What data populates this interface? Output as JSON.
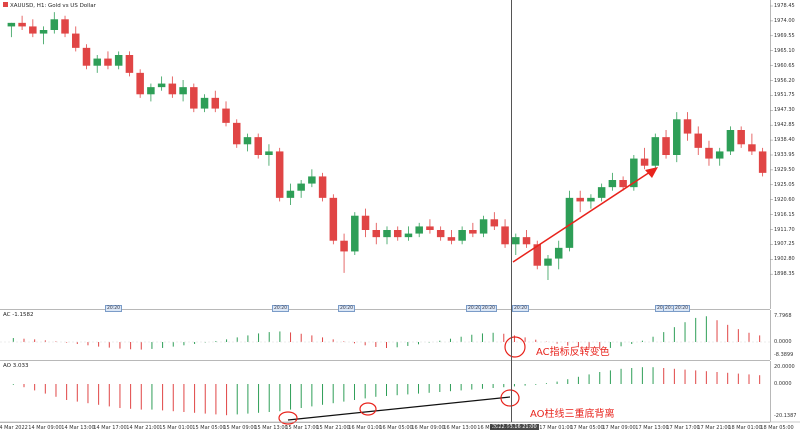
{
  "main_pane": {
    "title": "XAUUSD, H1:  Gold vs US Dollar",
    "price_labels": [
      "1978.45",
      "1974.00",
      "1969.55",
      "1965.10",
      "1960.65",
      "1956.20",
      "1951.75",
      "1947.30",
      "1942.85",
      "1938.40",
      "1933.95",
      "1929.50",
      "1925.05",
      "1920.60",
      "1916.15",
      "1911.70",
      "1907.25",
      "1902.80",
      "1898.35"
    ],
    "markers": [
      "20:20",
      "20:20",
      "20:20",
      "20:20",
      "20:20",
      "20:20",
      "20:20",
      "20:20",
      "20:20"
    ],
    "note_bottom_markers": [
      "28:20",
      "17:29",
      "28:20",
      "16:20",
      "20:20",
      "17:29",
      "21:20"
    ]
  },
  "ac_pane": {
    "title": "AC -1.1582",
    "scale_labels": [
      "7.7968",
      "0.0000",
      "-8.3899"
    ],
    "annotation": "AC指标反转变色"
  },
  "ao_pane": {
    "title": "AO 3.033",
    "scale_labels": [
      "20.0000",
      "0.0000",
      "-20.1387"
    ],
    "annotation": "AO柱线三重底背离"
  },
  "time_axis": {
    "labels": [
      "14 Mar 2022",
      "14 Mar 09:00",
      "14 Mar 13:00",
      "14 Mar 17:00",
      "14 Mar 21:00",
      "15 Mar 01:00",
      "15 Mar 05:00",
      "15 Mar 09:00",
      "15 Mar 13:00",
      "15 Mar 17:00",
      "15 Mar 21:00",
      "16 Mar 01:00",
      "16 Mar 05:00",
      "16 Mar 09:00",
      "16 Mar 13:00",
      "16 Mar 17:00",
      "17 Mar 01:00",
      "17 Mar 05:00",
      "17 Mar 09:00",
      "17 Mar 13:00",
      "17 Mar 17:00",
      "17 Mar 21:00",
      "18 Mar 01:00",
      "18 Mar 05:00"
    ],
    "crosshair_label": "2022.03.16 21:00"
  },
  "colors": {
    "bull": "#2e9e57",
    "bear": "#e04545",
    "accent": "#e8231c"
  },
  "chart_data": {
    "type": "candlestick",
    "title": "XAUUSD, H1:  Gold vs US Dollar",
    "ylim": [
      1896,
      1980
    ],
    "candles": [
      [
        1974,
        1975,
        1971,
        1975
      ],
      [
        1975,
        1977,
        1973,
        1974
      ],
      [
        1974,
        1976,
        1971,
        1972
      ],
      [
        1972,
        1974,
        1969,
        1973
      ],
      [
        1973,
        1978,
        1972,
        1976
      ],
      [
        1976,
        1977,
        1971,
        1972
      ],
      [
        1972,
        1974,
        1967,
        1968
      ],
      [
        1968,
        1969,
        1962,
        1963
      ],
      [
        1963,
        1966,
        1961,
        1965
      ],
      [
        1965,
        1967,
        1962,
        1963
      ],
      [
        1963,
        1967,
        1962,
        1966
      ],
      [
        1966,
        1967,
        1960,
        1961
      ],
      [
        1961,
        1962,
        1954,
        1955
      ],
      [
        1955,
        1958,
        1953,
        1957
      ],
      [
        1957,
        1960,
        1956,
        1958
      ],
      [
        1958,
        1960,
        1954,
        1955
      ],
      [
        1955,
        1959,
        1953,
        1957
      ],
      [
        1957,
        1958,
        1950,
        1951
      ],
      [
        1951,
        1955,
        1950,
        1954
      ],
      [
        1954,
        1956,
        1950,
        1951
      ],
      [
        1951,
        1953,
        1946,
        1947
      ],
      [
        1947,
        1948,
        1940,
        1941
      ],
      [
        1941,
        1944,
        1939,
        1943
      ],
      [
        1943,
        1944,
        1937,
        1938
      ],
      [
        1938,
        1941,
        1935,
        1939
      ],
      [
        1939,
        1940,
        1925,
        1926
      ],
      [
        1926,
        1930,
        1924,
        1928
      ],
      [
        1928,
        1931,
        1926,
        1930
      ],
      [
        1930,
        1934,
        1929,
        1932
      ],
      [
        1932,
        1933,
        1925,
        1926
      ],
      [
        1926,
        1927,
        1913,
        1914
      ],
      [
        1914,
        1916,
        1905,
        1911
      ],
      [
        1911,
        1922,
        1910,
        1921
      ],
      [
        1921,
        1923,
        1915,
        1917
      ],
      [
        1917,
        1919,
        1913,
        1915
      ],
      [
        1915,
        1918,
        1913,
        1917
      ],
      [
        1917,
        1918,
        1914,
        1915
      ],
      [
        1915,
        1918,
        1914,
        1916
      ],
      [
        1916,
        1919,
        1915,
        1918
      ],
      [
        1918,
        1920,
        1916,
        1917
      ],
      [
        1917,
        1918,
        1914,
        1915
      ],
      [
        1915,
        1917,
        1913,
        1914
      ],
      [
        1914,
        1918,
        1913,
        1917
      ],
      [
        1917,
        1919,
        1915,
        1916
      ],
      [
        1916,
        1921,
        1915,
        1920
      ],
      [
        1920,
        1922,
        1917,
        1918
      ],
      [
        1918,
        1920,
        1912,
        1913
      ],
      [
        1913,
        1916,
        1910,
        1915
      ],
      [
        1915,
        1917,
        1912,
        1913
      ],
      [
        1913,
        1914,
        1906,
        1907
      ],
      [
        1907,
        1910,
        1903,
        1909
      ],
      [
        1909,
        1914,
        1906,
        1912
      ],
      [
        1912,
        1928,
        1911,
        1926
      ],
      [
        1926,
        1928,
        1922,
        1925
      ],
      [
        1925,
        1927,
        1923,
        1926
      ],
      [
        1926,
        1930,
        1925,
        1929
      ],
      [
        1929,
        1933,
        1928,
        1931
      ],
      [
        1931,
        1932,
        1928,
        1929
      ],
      [
        1929,
        1938,
        1928,
        1937
      ],
      [
        1937,
        1940,
        1934,
        1935
      ],
      [
        1935,
        1944,
        1934,
        1943
      ],
      [
        1943,
        1945,
        1937,
        1938
      ],
      [
        1938,
        1950,
        1936,
        1948
      ],
      [
        1948,
        1950,
        1942,
        1944
      ],
      [
        1944,
        1946,
        1938,
        1940
      ],
      [
        1940,
        1942,
        1935,
        1937
      ],
      [
        1937,
        1940,
        1935,
        1939
      ],
      [
        1939,
        1946,
        1938,
        1945
      ],
      [
        1945,
        1946,
        1940,
        1941
      ],
      [
        1941,
        1944,
        1938,
        1939
      ],
      [
        1939,
        1940,
        1932,
        1933
      ]
    ],
    "ac_values": [
      1.2,
      1.0,
      0.8,
      0.5,
      0.2,
      -0.2,
      -0.6,
      -1.0,
      -1.4,
      -1.7,
      -2.0,
      -2.2,
      -2.3,
      -2.1,
      -1.8,
      -1.4,
      -1.0,
      -0.6,
      -0.2,
      0.3,
      0.8,
      1.4,
      2.0,
      2.6,
      3.0,
      3.2,
      2.9,
      2.5,
      2.0,
      1.4,
      0.8,
      0.2,
      -0.4,
      -1.0,
      -1.5,
      -1.8,
      -1.6,
      -1.2,
      -0.7,
      -0.2,
      0.4,
      1.0,
      1.6,
      2.2,
      2.6,
      2.8,
      2.5,
      2.0,
      1.4,
      0.7,
      0.1,
      -0.5,
      -1.1,
      -1.6,
      -2.0,
      -2.1,
      -1.8,
      -1.3,
      -0.6,
      0.4,
      1.6,
      3.0,
      4.5,
      6.0,
      7.3,
      7.8,
      6.6,
      5.2,
      3.9,
      2.8,
      2.0
    ],
    "ao_values": [
      -0.5,
      -2,
      -4,
      -6,
      -8,
      -10,
      -11,
      -12,
      -13,
      -14,
      -15,
      -15.5,
      -16,
      -16,
      -16.5,
      -17,
      -17.5,
      -18,
      -18.5,
      -19,
      -19.5,
      -19,
      -18.5,
      -18,
      -17.5,
      -17,
      -16,
      -15,
      -14,
      -13,
      -12,
      -11,
      -10,
      -9,
      -8,
      -7.5,
      -7,
      -6.5,
      -6,
      -5.5,
      -5,
      -4.5,
      -4,
      -3.5,
      -3,
      -2.5,
      -2,
      -1.5,
      -1,
      -0.5,
      0.5,
      1.5,
      3,
      4.5,
      6,
      7.5,
      8.5,
      9.5,
      10,
      10.5,
      10.5,
      10,
      9.5,
      9,
      8.5,
      8,
      7.5,
      7,
      6.5,
      6,
      5.5
    ],
    "series": [
      {
        "name": "AC"
      },
      {
        "name": "AO"
      }
    ]
  }
}
